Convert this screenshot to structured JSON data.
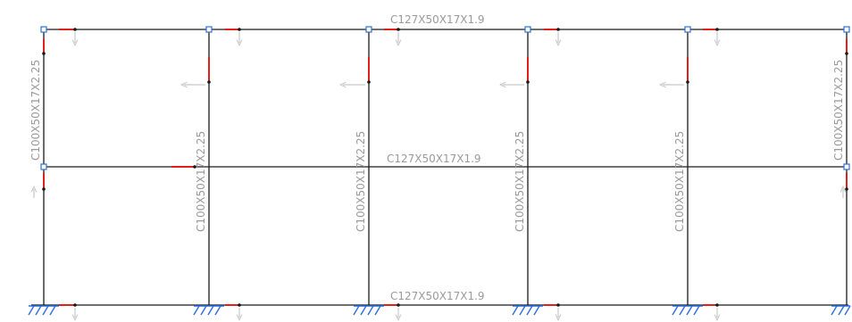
{
  "labels": {
    "beam_top": "C127X50X17X1.9",
    "beam_mid": "C127X50X17X1.9",
    "beam_bottom": "C127X50X17X1.9",
    "col_left_upper": "C100X50X17X2.25",
    "col_right_upper": "C100X50X17X2.25",
    "col_2": "C100X50X17X2.25",
    "col_3": "C100X50X17X2.25",
    "col_4": "C100X50X17X2.25",
    "col_5": "C100X50X17X2.25"
  },
  "colors": {
    "member": "#1a1a1a",
    "joint": "#2f6fd6",
    "release": "#e0201b",
    "support": "#2a6fe0",
    "load_arrow": "#c8c8c8",
    "label": "#9a9a9a"
  },
  "icons": [
    "fixed-support-icon",
    "release-marker-icon",
    "joint-node-icon",
    "load-arrow-icon"
  ]
}
